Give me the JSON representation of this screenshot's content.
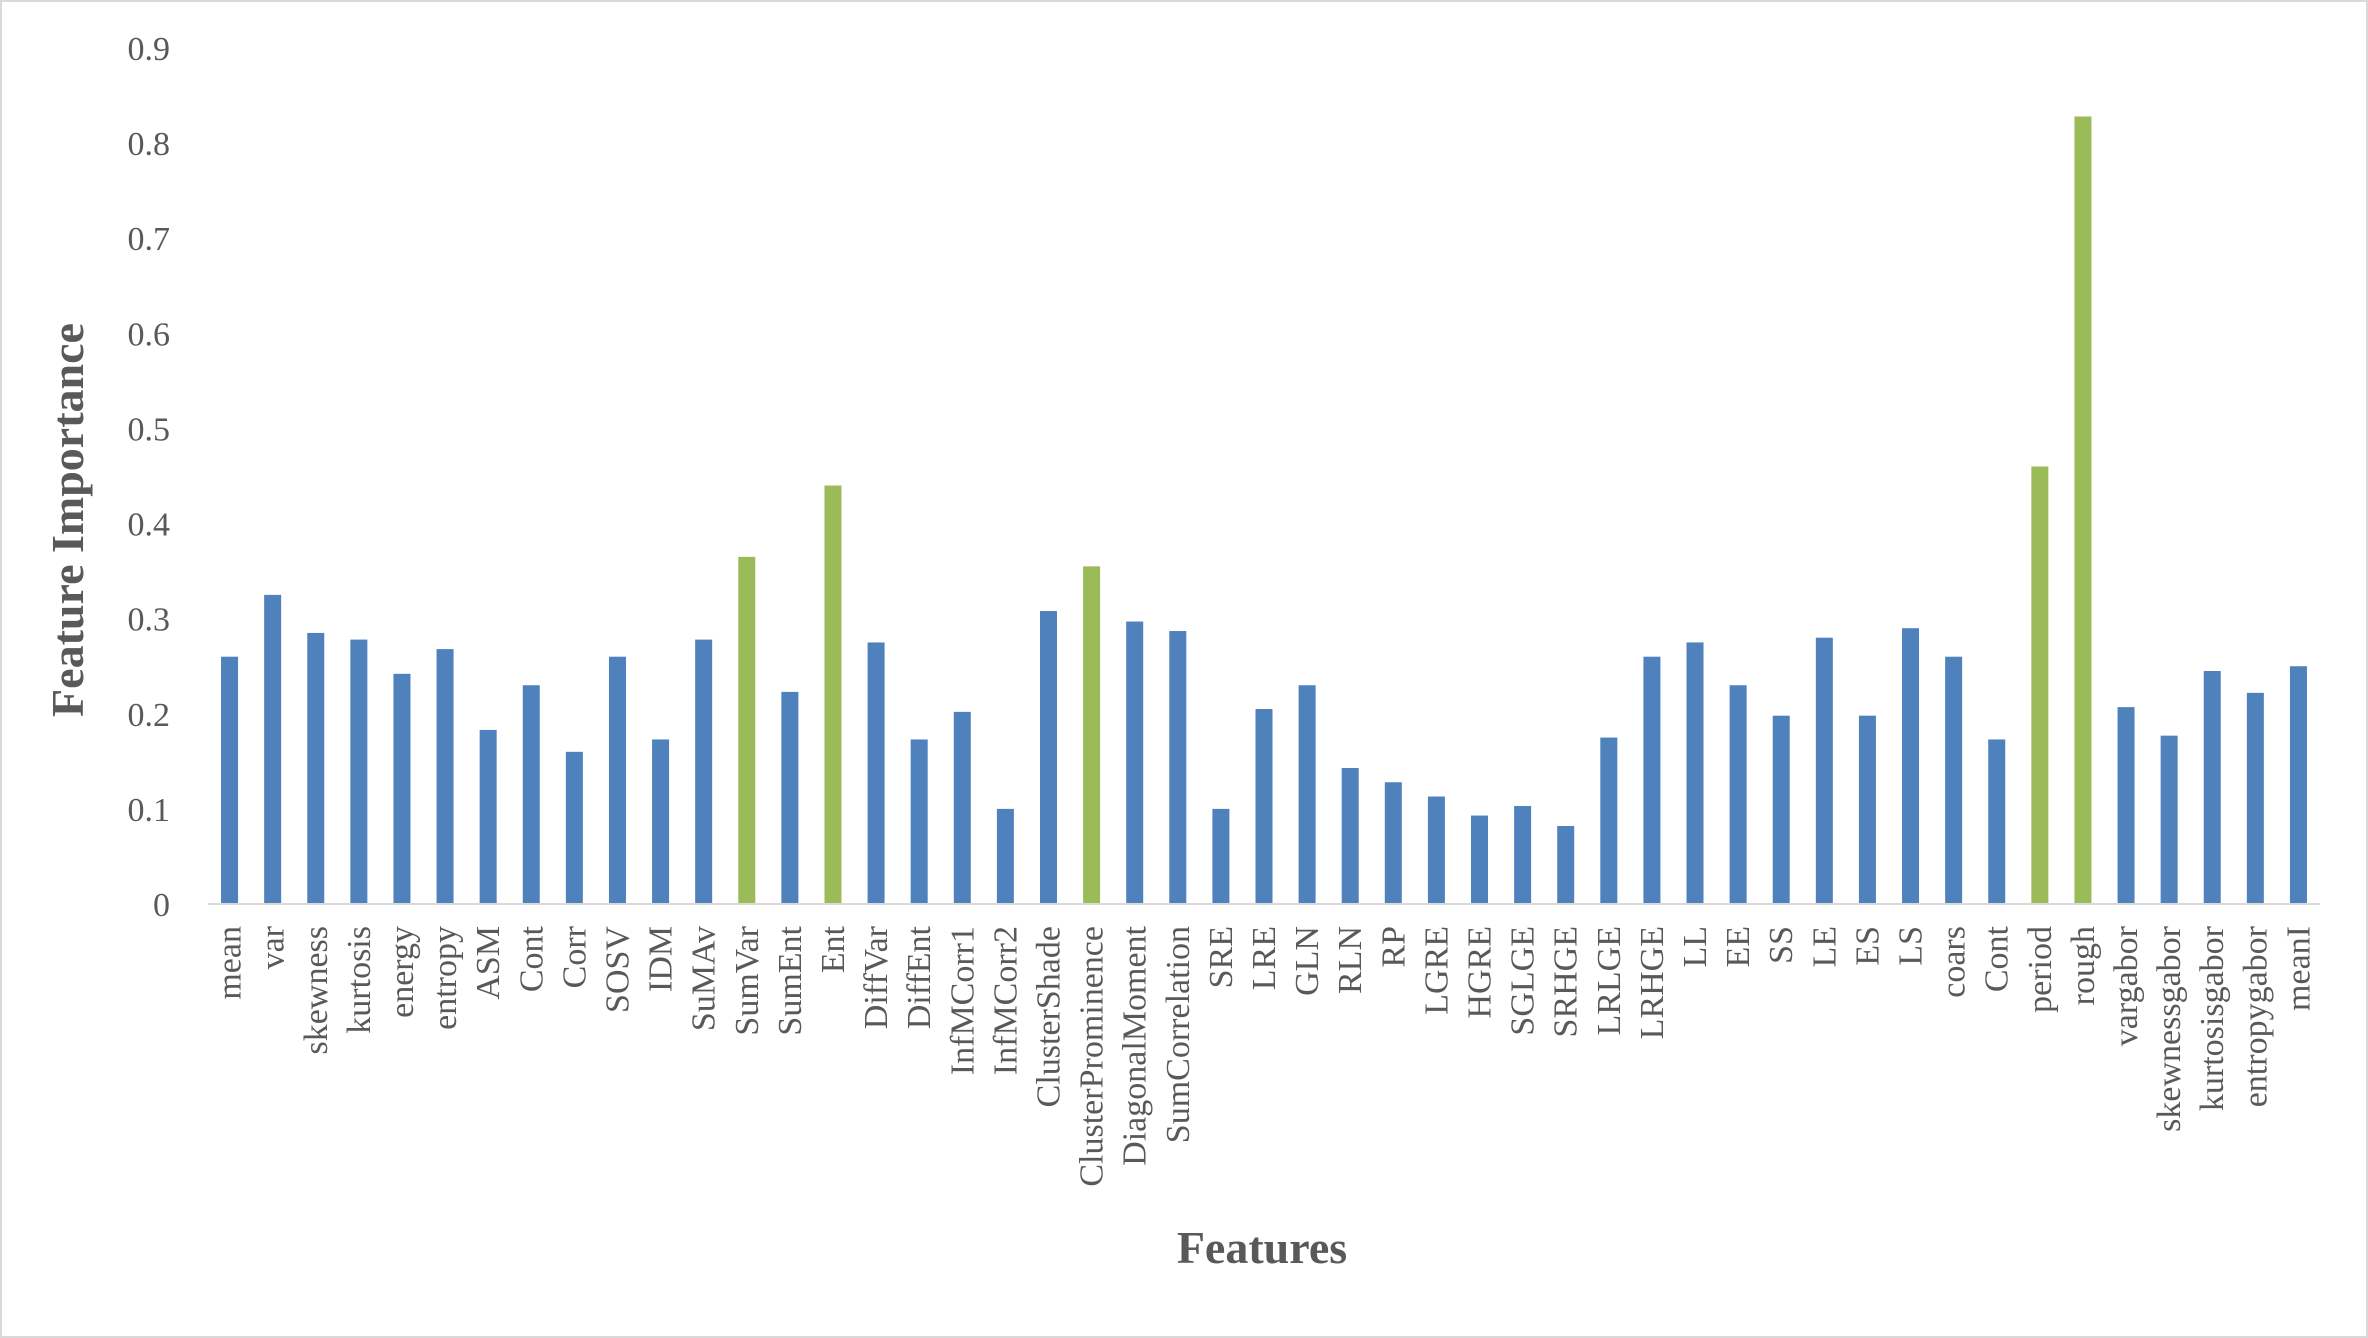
{
  "chart_data": {
    "type": "bar",
    "title": "",
    "xlabel": "Features",
    "ylabel": "Feature Importance",
    "ylim": [
      0,
      0.9
    ],
    "yticks": [
      "0",
      "0.1",
      "0.2",
      "0.3",
      "0.4",
      "0.5",
      "0.6",
      "0.7",
      "0.8",
      "0.9"
    ],
    "grid": false,
    "legend": "none",
    "colors": {
      "default": "#4f81bd",
      "highlight": "#9bbb59",
      "axis": "#d9d9d9",
      "text": "#595959"
    },
    "categories": [
      "mean",
      "var",
      "skewness",
      "kurtosis",
      "energy",
      "entropy",
      "ASM",
      "Cont",
      "Corr",
      "SOSV",
      "IDM",
      "SuMAv",
      "SumVar",
      "SumEnt",
      "Ent",
      "DiffVar",
      "DiffEnt",
      "InfMCorr1",
      "InfMCorr2",
      "ClusterShade",
      "ClusterProminence",
      "DiagonalMoment",
      "SumCorrelation",
      "SRE",
      "LRE",
      "GLN",
      "RLN",
      "RP",
      "LGRE",
      "HGRE",
      "SGLGE",
      "SRHGE",
      "LRLGE",
      "LRHGE",
      "LL",
      "EE",
      "SS",
      "LE",
      "ES",
      "LS",
      "coars",
      "Cont",
      "period",
      "rough",
      "vargabor",
      "skewnessgabor",
      "kurtosisgabor",
      "entropygabor",
      "meanI"
    ],
    "values": [
      0.26,
      0.325,
      0.285,
      0.278,
      0.242,
      0.268,
      0.183,
      0.23,
      0.16,
      0.26,
      0.173,
      0.278,
      0.365,
      0.223,
      0.44,
      0.275,
      0.173,
      0.202,
      0.1,
      0.308,
      0.355,
      0.297,
      0.287,
      0.1,
      0.205,
      0.23,
      0.143,
      0.128,
      0.113,
      0.093,
      0.103,
      0.082,
      0.175,
      0.26,
      0.275,
      0.23,
      0.198,
      0.28,
      0.198,
      0.29,
      0.26,
      0.173,
      0.46,
      0.828,
      0.207,
      0.177,
      0.245,
      0.222,
      0.25
    ],
    "highlighted": [
      "SumVar",
      "Ent",
      "ClusterProminence",
      "period",
      "rough"
    ]
  }
}
